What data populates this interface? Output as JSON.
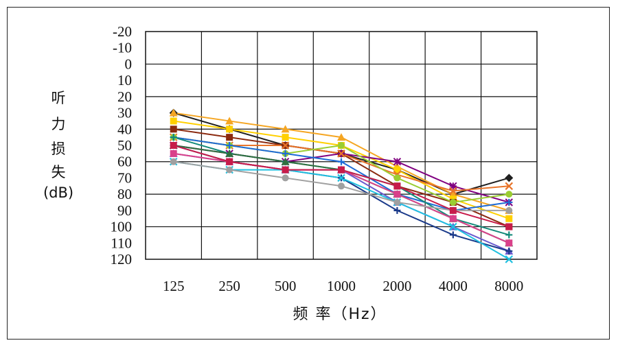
{
  "chart_data": {
    "type": "line",
    "title": "",
    "ylabel_chars": [
      "听",
      "力",
      "损",
      "失",
      "(dB)"
    ],
    "xlabel": "频  率（Hz）",
    "categories": [
      "125",
      "250",
      "500",
      "1000",
      "2000",
      "4000",
      "8000"
    ],
    "y_ticks": [
      "-20",
      "-10",
      "0",
      "10",
      "20",
      "30",
      "40",
      "50",
      "60",
      "70",
      "80",
      "90",
      "100",
      "110",
      "120"
    ],
    "ylim": [
      -20,
      120
    ],
    "y_inverted": true,
    "grid": true,
    "series": [
      {
        "color": "#1f1f1f",
        "marker": "diamond",
        "values": [
          30,
          40,
          50,
          55,
          65,
          80,
          70
        ]
      },
      {
        "color": "#f5a623",
        "marker": "triangle",
        "values": [
          30,
          35,
          40,
          45,
          63,
          80,
          90
        ]
      },
      {
        "color": "#ffd000",
        "marker": "square",
        "values": [
          35,
          40,
          45,
          50,
          65,
          83,
          95
        ]
      },
      {
        "color": "#8b2a0f",
        "marker": "square",
        "values": [
          40,
          45,
          50,
          55,
          75,
          85,
          100
        ]
      },
      {
        "color": "#800080",
        "marker": "star",
        "values": [
          50,
          55,
          60,
          55,
          60,
          75,
          85
        ]
      },
      {
        "color": "#e8742a",
        "marker": "x",
        "values": [
          45,
          50,
          50,
          55,
          68,
          78,
          75
        ]
      },
      {
        "color": "#9acd32",
        "marker": "circle",
        "values": [
          45,
          50,
          55,
          50,
          70,
          85,
          80
        ]
      },
      {
        "color": "#1e6bd6",
        "marker": "cross",
        "values": [
          45,
          50,
          55,
          60,
          80,
          90,
          85
        ]
      },
      {
        "color": "#138a7a",
        "marker": "plus",
        "values": [
          45,
          55,
          60,
          65,
          75,
          95,
          105
        ]
      },
      {
        "color": "#2f6f3f",
        "marker": "triangle",
        "values": [
          50,
          55,
          60,
          65,
          80,
          95,
          110
        ]
      },
      {
        "color": "#6a5acd",
        "marker": "triangle",
        "values": [
          55,
          60,
          65,
          65,
          85,
          100,
          115
        ]
      },
      {
        "color": "#1a3a8a",
        "marker": "plus",
        "values": [
          50,
          60,
          65,
          70,
          90,
          105,
          115
        ]
      },
      {
        "color": "#d9418a",
        "marker": "square",
        "values": [
          55,
          60,
          65,
          65,
          80,
          95,
          110
        ]
      },
      {
        "color": "#20c0e0",
        "marker": "x",
        "values": [
          60,
          65,
          65,
          70,
          85,
          100,
          120
        ]
      },
      {
        "color": "#a0a0a0",
        "marker": "circle",
        "values": [
          60,
          65,
          70,
          75,
          85,
          90,
          90
        ]
      },
      {
        "color": "#c71c4a",
        "marker": "square",
        "values": [
          50,
          60,
          65,
          65,
          75,
          90,
          100
        ]
      }
    ]
  }
}
